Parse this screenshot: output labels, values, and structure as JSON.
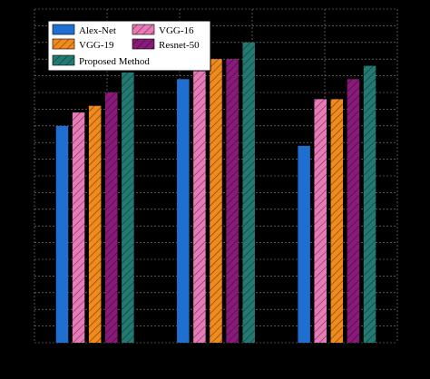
{
  "chart_data": {
    "type": "bar",
    "categories": [
      "",
      "",
      ""
    ],
    "ylim": [
      0,
      100
    ],
    "grid": true,
    "legend_placement": "top-left",
    "series": [
      {
        "name": "Alex-Net",
        "color": "#1f6fd1",
        "hatch": false,
        "values": [
          65,
          79,
          59
        ]
      },
      {
        "name": "VGG-16",
        "color": "#e87ab8",
        "hatch": true,
        "values": [
          69,
          83,
          73
        ]
      },
      {
        "name": "VGG-19",
        "color": "#f08a1c",
        "hatch": true,
        "values": [
          71,
          85,
          73
        ]
      },
      {
        "name": "Resnet-50",
        "color": "#8a1a7a",
        "hatch": true,
        "values": [
          75,
          85,
          79
        ]
      },
      {
        "name": "Proposed Method",
        "color": "#237a72",
        "hatch": true,
        "values": [
          81,
          90,
          83
        ]
      }
    ]
  }
}
